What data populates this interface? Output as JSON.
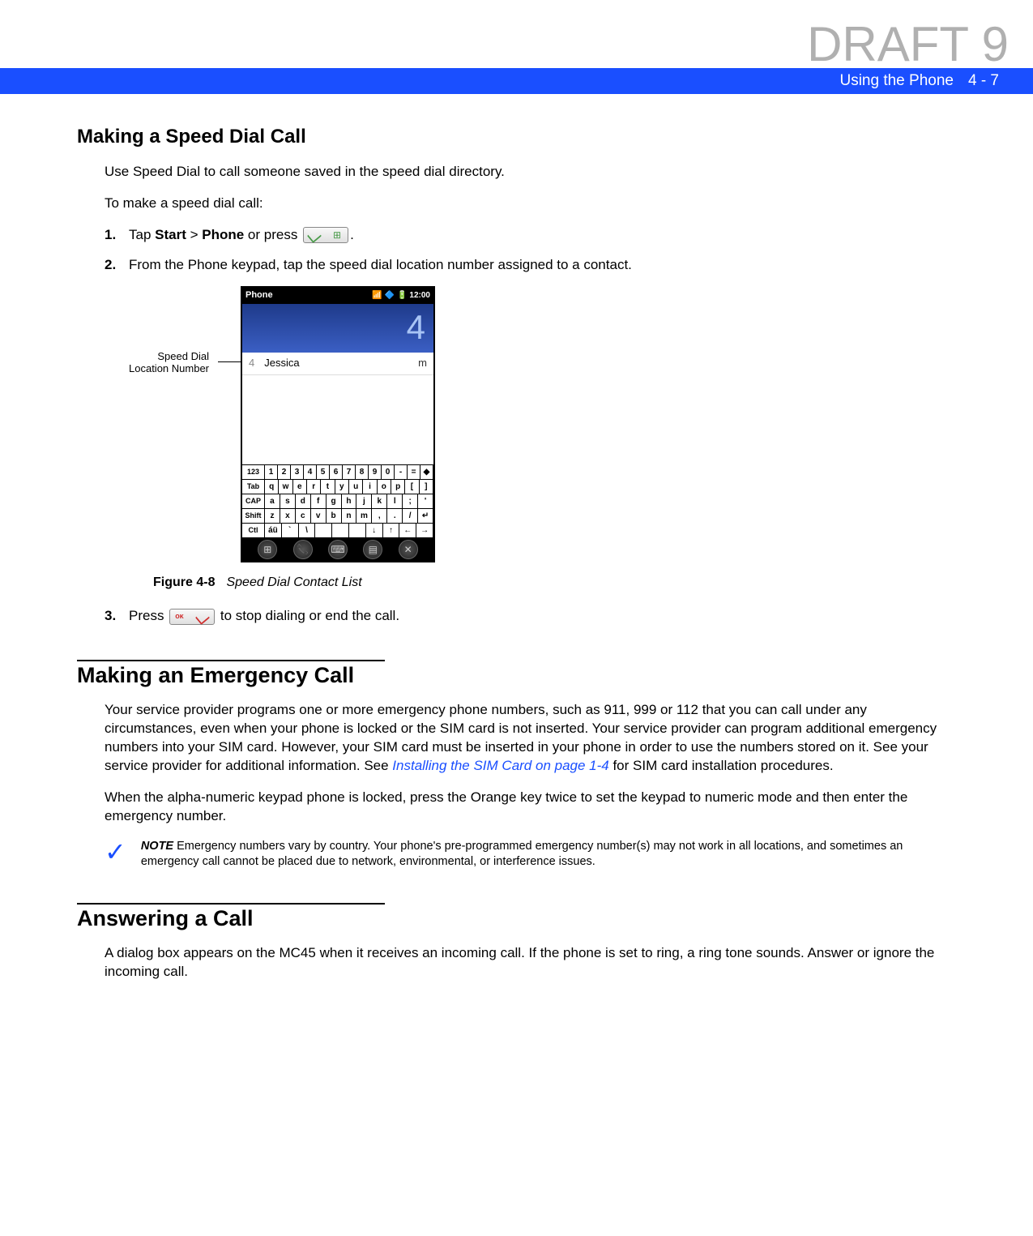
{
  "watermark": "DRAFT 9",
  "header": {
    "title": "Using the Phone",
    "page": "4 - 7"
  },
  "s1": {
    "heading": "Making a Speed Dial Call",
    "p1": "Use Speed Dial to call someone saved in the speed dial directory.",
    "p2": "To make a speed dial call:",
    "step1_a": "Tap ",
    "step1_b": "Start",
    "step1_c": " > ",
    "step1_d": "Phone",
    "step1_e": " or press ",
    "step1_f": ".",
    "step2": "From the Phone keypad, tap the speed dial location number assigned to a contact.",
    "callout_l1": "Speed Dial",
    "callout_l2": "Location Number",
    "phone": {
      "titlebar": "Phone",
      "time": "12:00",
      "dialed": "4",
      "contact_idx": "4",
      "contact_name": "Jessica",
      "contact_type": "m"
    },
    "fig_num": "Figure 4-8",
    "fig_title": "Speed Dial Contact List",
    "step3_a": "Press ",
    "step3_b": " to stop dialing or end the call."
  },
  "s2": {
    "heading": "Making an Emergency Call",
    "p1_a": "Your service provider programs one or more emergency phone numbers, such as 911, 999 or 112 that you can call under any circumstances, even when your phone is locked or the SIM card is not inserted. Your service provider can program additional emergency numbers into your SIM card. However, your SIM card must be inserted in your phone in order to use the numbers stored on it. See your service provider for additional information. See ",
    "p1_link": "Installing the SIM Card on page 1-4",
    "p1_b": " for SIM card installation procedures.",
    "p2": "When the alpha-numeric keypad phone is locked, press the Orange key twice to set the keypad to numeric mode and then enter the emergency number.",
    "note_label": "NOTE",
    "note": "Emergency numbers vary by country. Your phone's pre-programmed emergency number(s) may not work in all locations, and sometimes an emergency call cannot be placed due to network, environmental, or interference issues."
  },
  "s3": {
    "heading": "Answering a Call",
    "p1": "A dialog box appears on the MC45 when it receives an incoming call. If the phone is set to ring, a ring tone sounds. Answer or ignore the incoming call."
  },
  "kb": {
    "r1": [
      "123",
      "1",
      "2",
      "3",
      "4",
      "5",
      "6",
      "7",
      "8",
      "9",
      "0",
      "-",
      "=",
      "◆"
    ],
    "r2": [
      "Tab",
      "q",
      "w",
      "e",
      "r",
      "t",
      "y",
      "u",
      "i",
      "o",
      "p",
      "[",
      "]"
    ],
    "r3": [
      "CAP",
      "a",
      "s",
      "d",
      "f",
      "g",
      "h",
      "j",
      "k",
      "l",
      ";",
      "'"
    ],
    "r4": [
      "Shift",
      "z",
      "x",
      "c",
      "v",
      "b",
      "n",
      "m",
      ",",
      ".",
      "/",
      "↵"
    ],
    "r5": [
      "Ctl",
      "áü",
      "`",
      "\\",
      " ",
      " ",
      " ",
      "↓",
      "↑",
      "←",
      "→"
    ]
  },
  "colors": {
    "header_bg": "#1a4fff",
    "watermark": "#b0b0b0",
    "link": "#1a4fff"
  }
}
